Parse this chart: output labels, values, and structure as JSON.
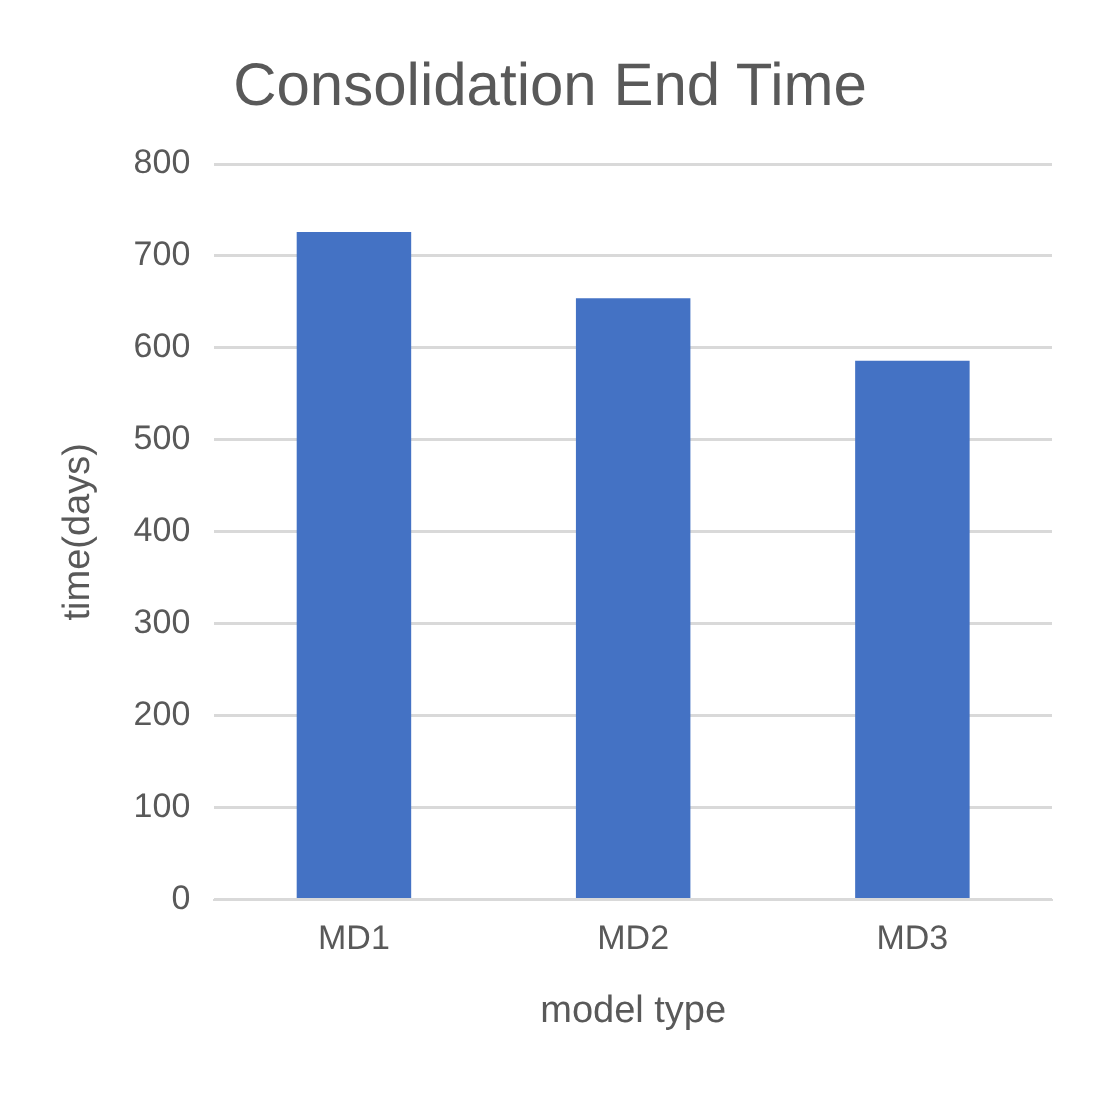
{
  "chart_data": {
    "type": "bar",
    "title": "Consolidation End Time",
    "xlabel": "model type",
    "ylabel": "time(days)",
    "categories": [
      "MD1",
      "MD2",
      "MD3"
    ],
    "values": [
      726,
      654,
      586
    ],
    "color": "#4472c4",
    "ylim": [
      0,
      800
    ],
    "yticks": [
      0,
      100,
      200,
      300,
      400,
      500,
      600,
      700,
      800
    ],
    "grid": "y"
  }
}
